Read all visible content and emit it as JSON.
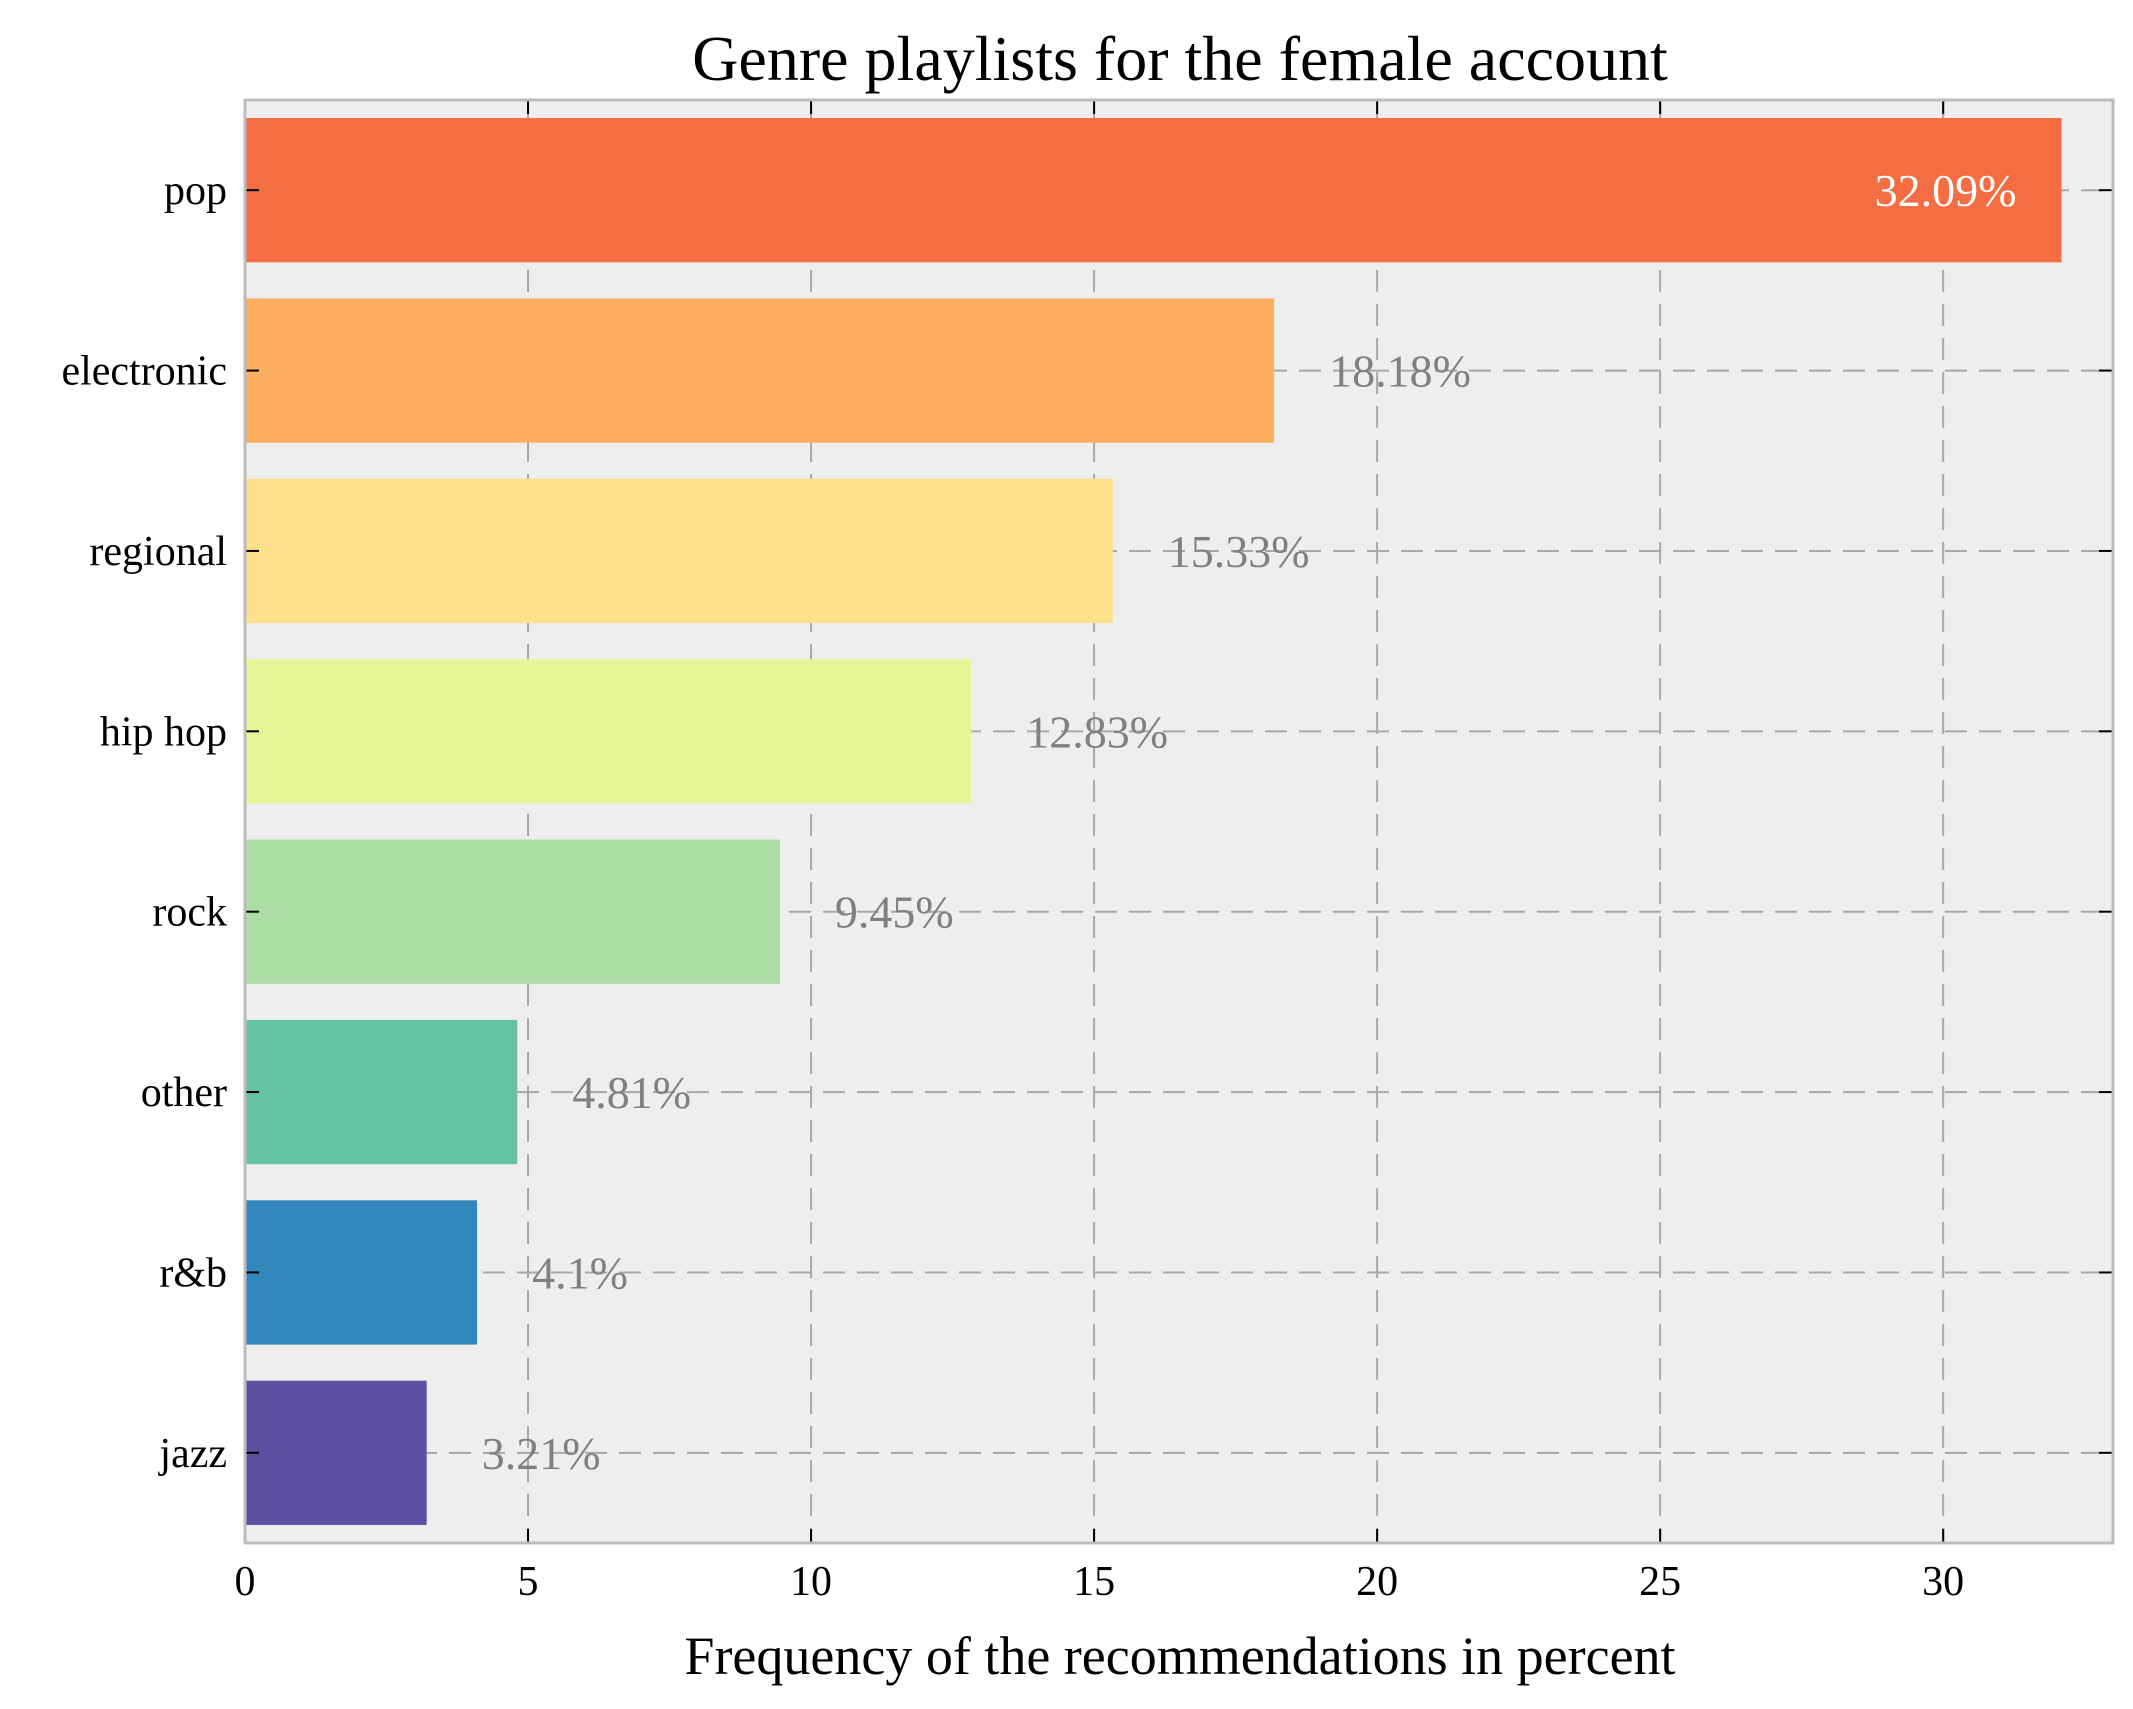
{
  "chart_data": {
    "type": "bar",
    "orientation": "horizontal",
    "title": "Genre playlists for the female account",
    "xlabel": "Frequency of the recommendations in percent",
    "ylabel": "",
    "xlim": [
      0,
      33
    ],
    "xticks": [
      0,
      5,
      10,
      15,
      20,
      25,
      30
    ],
    "grid": true,
    "grid_style": "dashed",
    "categories": [
      "pop",
      "electronic",
      "regional",
      "hip hop",
      "rock",
      "other",
      "r&b",
      "jazz"
    ],
    "values": [
      32.09,
      18.18,
      15.33,
      12.83,
      9.45,
      4.81,
      4.1,
      3.21
    ],
    "data_labels": [
      "32.09%",
      "18.18%",
      "15.33%",
      "12.83%",
      "9.45%",
      "4.81%",
      "4.1%",
      "3.21%"
    ],
    "colors": [
      "#f46d43",
      "#fdae61",
      "#fee08b",
      "#e6f598",
      "#abdda4",
      "#66c2a5",
      "#3288bd",
      "#5e4fa2"
    ],
    "plot_background": "#eeeeee",
    "label_color_inside": "#ffffff",
    "label_color_outside": "#808080"
  }
}
